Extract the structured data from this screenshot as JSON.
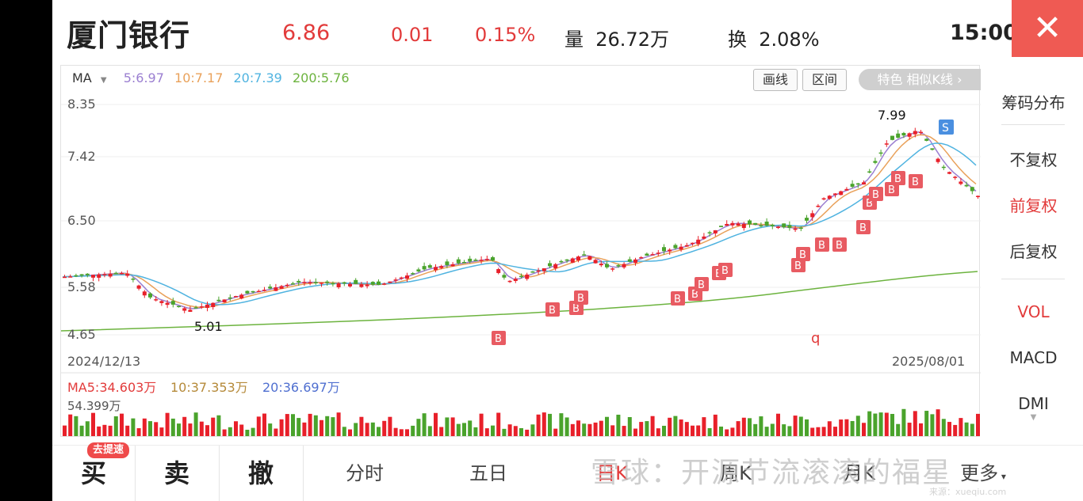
{
  "header": {
    "stock_name": "厦门银行",
    "price": "6.86",
    "change": "0.01",
    "change_pct": "0.15%",
    "volume_label": "量",
    "volume": "26.72万",
    "turnover_label": "换",
    "turnover": "2.08%",
    "time": "15:00",
    "close_glyph": "✕"
  },
  "chart": {
    "indicator": "MA",
    "ma_legend": [
      {
        "label": "5:6.97",
        "color": "#9b7fd1"
      },
      {
        "label": "10:7.17",
        "color": "#e9a15a"
      },
      {
        "label": "20:7.39",
        "color": "#4fb3e0"
      },
      {
        "label": "200:5.76",
        "color": "#6cb33e"
      }
    ],
    "tools": {
      "draw": "画线",
      "range": "区间",
      "pill": "特色  相似K线 ›"
    },
    "y_ticks": [
      "8.35",
      "7.42",
      "6.50",
      "5.58",
      "4.65"
    ],
    "high_label": "7.99",
    "low_label": "5.01",
    "start_date": "2024/12/13",
    "end_date": "2025/08/01",
    "buy_marker": "B",
    "sell_marker": "S",
    "q_marker": "q"
  },
  "volume_panel": {
    "ma5": "MA5:34.603万",
    "ma10": "10:37.353万",
    "ma20": "20:36.697万",
    "max_label": "54.399万"
  },
  "colors": {
    "up": "#e8202a",
    "down": "#4aa32c",
    "accent": "#e23b3b",
    "close_bg": "#ef5a53"
  },
  "right_panel": {
    "chips": "筹码分布",
    "no_adjust": "不复权",
    "forward_adjust": "前复权",
    "backward_adjust": "后复权",
    "vol": "VOL",
    "macd": "MACD",
    "dmi": "DMI"
  },
  "bottom_bar": {
    "buy": "买",
    "buy_badge": "去提速",
    "sell": "卖",
    "cancel": "撤",
    "intraday": "分时",
    "five_day": "五日",
    "daily_k": "日K",
    "weekly_k": "周K",
    "monthly_k": "月K",
    "more": "更多"
  },
  "watermark": {
    "text": "雪球：开源节流滚滚的福星",
    "small": "来源：xueqiu.com"
  }
}
